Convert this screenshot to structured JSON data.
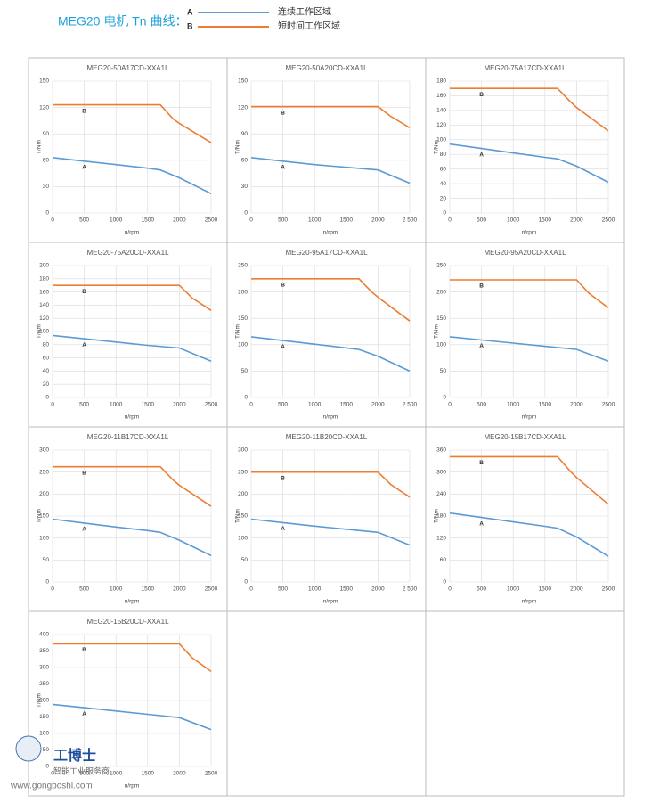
{
  "header": {
    "title": "MEG20 电机 Tn 曲线：",
    "legend": [
      {
        "key": "A",
        "label": "连续工作区域",
        "color": "#5b9bd5"
      },
      {
        "key": "B",
        "label": "短时间工作区域",
        "color": "#ed7d31"
      }
    ]
  },
  "watermark": {
    "brand": "工博士",
    "slogan": "智能工业服务商",
    "url": "www.gongboshi.com"
  },
  "chart_data": [
    {
      "type": "line",
      "title": "MEG20-50A17CD-XXA1L",
      "x_label": "n/rpm",
      "y_label": "T/Nm",
      "xlim": [
        0,
        2500
      ],
      "xticks": [
        0,
        500,
        1000,
        1500,
        2000,
        2500
      ],
      "ylim": [
        0,
        150
      ],
      "yticks": [
        0,
        30,
        60,
        90,
        120,
        150
      ],
      "grid": true,
      "series": [
        {
          "name": "A",
          "color": "#5b9bd5",
          "x": [
            0,
            500,
            1000,
            1500,
            1700,
            2000,
            2500
          ],
          "values": [
            63,
            59,
            55,
            51,
            49,
            40,
            22
          ]
        },
        {
          "name": "B",
          "color": "#ed7d31",
          "x": [
            0,
            1700,
            1900,
            2000,
            2500
          ],
          "values": [
            123,
            123,
            107,
            102,
            80
          ]
        }
      ]
    },
    {
      "type": "line",
      "title": "MEG20-50A20CD-XXA1L",
      "x_label": "n/rpm",
      "y_label": "T/Nm",
      "xlim": [
        0,
        2500
      ],
      "xticks": [
        0,
        500,
        1000,
        1500,
        2000,
        {
          "value": 2500,
          "label": "2 500"
        }
      ],
      "ylim": [
        0,
        150
      ],
      "yticks": [
        0,
        30,
        60,
        90,
        120,
        150
      ],
      "grid": true,
      "series": [
        {
          "name": "A",
          "color": "#5b9bd5",
          "x": [
            0,
            500,
            1000,
            1500,
            2000,
            2500
          ],
          "values": [
            63,
            59,
            55,
            52,
            49,
            34
          ]
        },
        {
          "name": "B",
          "color": "#ed7d31",
          "x": [
            0,
            2000,
            2200,
            2500
          ],
          "values": [
            121,
            121,
            110,
            97
          ]
        }
      ]
    },
    {
      "type": "line",
      "title": "MEG20-75A17CD-XXA1L",
      "x_label": "n/rpm",
      "y_label": "T/Nm",
      "xlim": [
        0,
        2500
      ],
      "xticks": [
        0,
        500,
        1000,
        1500,
        2000,
        2500
      ],
      "ylim": [
        0,
        180
      ],
      "yticks": [
        0,
        20,
        40,
        60,
        80,
        100,
        120,
        140,
        160,
        180
      ],
      "grid": true,
      "series": [
        {
          "name": "A",
          "color": "#5b9bd5",
          "x": [
            0,
            500,
            1000,
            1500,
            1700,
            2000,
            2500
          ],
          "values": [
            94,
            88,
            82,
            76,
            74,
            64,
            42
          ]
        },
        {
          "name": "B",
          "color": "#ed7d31",
          "x": [
            0,
            1700,
            1900,
            2000,
            2500
          ],
          "values": [
            170,
            170,
            152,
            144,
            112
          ]
        }
      ]
    },
    {
      "type": "line",
      "title": "MEG20-75A20CD-XXA1L",
      "x_label": "n/rpm",
      "y_label": "T/Nm",
      "xlim": [
        0,
        2500
      ],
      "xticks": [
        0,
        500,
        1000,
        1500,
        2000,
        2500
      ],
      "ylim": [
        0,
        200
      ],
      "yticks": [
        0,
        20,
        40,
        60,
        80,
        100,
        120,
        140,
        160,
        180,
        200
      ],
      "grid": true,
      "series": [
        {
          "name": "A",
          "color": "#5b9bd5",
          "x": [
            0,
            500,
            1000,
            1500,
            2000,
            2500
          ],
          "values": [
            94,
            89,
            84,
            79,
            75,
            55
          ]
        },
        {
          "name": "B",
          "color": "#ed7d31",
          "x": [
            0,
            2000,
            2200,
            2500
          ],
          "values": [
            170,
            170,
            151,
            132
          ]
        }
      ]
    },
    {
      "type": "line",
      "title": "MEG20-95A17CD-XXA1L",
      "x_label": "n/rpm",
      "y_label": "T/Nm",
      "xlim": [
        0,
        2500
      ],
      "xticks": [
        0,
        500,
        1000,
        1500,
        2000,
        {
          "value": 2500,
          "label": "2 500"
        }
      ],
      "ylim": [
        0,
        250
      ],
      "yticks": [
        0,
        50,
        100,
        150,
        200,
        250
      ],
      "grid": true,
      "series": [
        {
          "name": "A",
          "color": "#5b9bd5",
          "x": [
            0,
            500,
            1000,
            1500,
            1700,
            2000,
            2500
          ],
          "values": [
            115,
            108,
            101,
            94,
            91,
            78,
            50
          ]
        },
        {
          "name": "B",
          "color": "#ed7d31",
          "x": [
            0,
            1700,
            1900,
            2000,
            2500
          ],
          "values": [
            225,
            225,
            200,
            190,
            145
          ]
        }
      ]
    },
    {
      "type": "line",
      "title": "MEG20-95A20CD-XXA1L",
      "x_label": "n/rpm",
      "y_label": "T/Nm",
      "xlim": [
        0,
        2500
      ],
      "xticks": [
        0,
        500,
        1000,
        1500,
        2000,
        2500
      ],
      "ylim": [
        0,
        250
      ],
      "yticks": [
        0,
        50,
        100,
        150,
        200,
        250
      ],
      "grid": true,
      "series": [
        {
          "name": "A",
          "color": "#5b9bd5",
          "x": [
            0,
            500,
            1000,
            1500,
            2000,
            2500
          ],
          "values": [
            115,
            109,
            103,
            97,
            91,
            69
          ]
        },
        {
          "name": "B",
          "color": "#ed7d31",
          "x": [
            0,
            2000,
            2200,
            2500
          ],
          "values": [
            223,
            223,
            197,
            170
          ]
        }
      ]
    },
    {
      "type": "line",
      "title": "MEG20-11B17CD-XXA1L",
      "x_label": "n/rpm",
      "y_label": "T/Nm",
      "xlim": [
        0,
        2500
      ],
      "xticks": [
        0,
        500,
        1000,
        1500,
        2000,
        2500
      ],
      "ylim": [
        0,
        300
      ],
      "yticks": [
        0,
        50,
        100,
        150,
        200,
        250,
        300
      ],
      "grid": true,
      "series": [
        {
          "name": "A",
          "color": "#5b9bd5",
          "x": [
            0,
            500,
            1000,
            1500,
            1700,
            2000,
            2500
          ],
          "values": [
            143,
            134,
            125,
            117,
            113,
            95,
            60
          ]
        },
        {
          "name": "B",
          "color": "#ed7d31",
          "x": [
            0,
            1700,
            1900,
            2000,
            2500
          ],
          "values": [
            262,
            262,
            232,
            220,
            172
          ]
        }
      ]
    },
    {
      "type": "line",
      "title": "MEG20-11B20CD-XXA1L",
      "x_label": "n/rpm",
      "y_label": "T/Nm",
      "xlim": [
        0,
        2500
      ],
      "xticks": [
        0,
        500,
        1000,
        1500,
        2000,
        {
          "value": 2500,
          "label": "2 500"
        }
      ],
      "ylim": [
        0,
        300
      ],
      "yticks": [
        0,
        50,
        100,
        150,
        200,
        250,
        300
      ],
      "grid": true,
      "series": [
        {
          "name": "A",
          "color": "#5b9bd5",
          "x": [
            0,
            500,
            1000,
            1500,
            2000,
            2500
          ],
          "values": [
            143,
            135,
            127,
            120,
            113,
            84
          ]
        },
        {
          "name": "B",
          "color": "#ed7d31",
          "x": [
            0,
            2000,
            2200,
            2500
          ],
          "values": [
            250,
            250,
            222,
            193
          ]
        }
      ]
    },
    {
      "type": "line",
      "title": "MEG20-15B17CD-XXA1L",
      "x_label": "n/rpm",
      "y_label": "T/Nm",
      "xlim": [
        0,
        2500
      ],
      "xticks": [
        0,
        500,
        1000,
        1500,
        2000,
        2500
      ],
      "ylim": [
        0,
        360
      ],
      "yticks": [
        0,
        60,
        120,
        180,
        240,
        300,
        360
      ],
      "grid": true,
      "series": [
        {
          "name": "A",
          "color": "#5b9bd5",
          "x": [
            0,
            500,
            1000,
            1500,
            1700,
            2000,
            2500
          ],
          "values": [
            188,
            176,
            164,
            152,
            147,
            123,
            70
          ]
        },
        {
          "name": "B",
          "color": "#ed7d31",
          "x": [
            0,
            1700,
            1900,
            2000,
            2500
          ],
          "values": [
            342,
            342,
            302,
            285,
            212
          ]
        }
      ]
    },
    {
      "type": "line",
      "title": "MEG20-15B20CD-XXA1L",
      "x_label": "n/rpm",
      "y_label": "T/Nm",
      "xlim": [
        0,
        2500
      ],
      "xticks": [
        0,
        500,
        1000,
        1500,
        2000,
        2500
      ],
      "ylim": [
        0,
        400
      ],
      "yticks": [
        0,
        50,
        100,
        150,
        200,
        250,
        300,
        350,
        400
      ],
      "grid": true,
      "series": [
        {
          "name": "A",
          "color": "#5b9bd5",
          "x": [
            0,
            500,
            1000,
            1500,
            2000,
            2500
          ],
          "values": [
            188,
            178,
            168,
            158,
            148,
            112
          ]
        },
        {
          "name": "B",
          "color": "#ed7d31",
          "x": [
            0,
            2000,
            2200,
            2500
          ],
          "values": [
            372,
            372,
            330,
            288
          ]
        }
      ]
    }
  ]
}
